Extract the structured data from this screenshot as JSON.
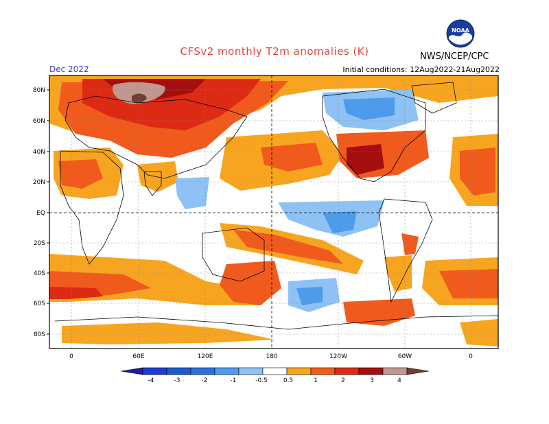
{
  "header": {
    "title": "CFSv2 monthly T2m anomalies (K)",
    "valid_month": "Dec 2022",
    "initial_conditions": "Initial conditions: 12Aug2022-21Aug2022",
    "agency": "NWS/NCEP/CPC",
    "logo_text": "NOAA"
  },
  "map": {
    "lat_labels": [
      "80N",
      "60N",
      "40N",
      "20N",
      "EQ",
      "20S",
      "40S",
      "60S",
      "80S"
    ],
    "lon_labels": [
      "0",
      "60E",
      "120E",
      "180",
      "120W",
      "60W",
      "0"
    ],
    "colors": {
      "ocean_bg": "#ffffff",
      "coast": "#000000",
      "grid": "#888888"
    }
  },
  "legend": {
    "labels": [
      "-4",
      "-3",
      "-2",
      "-1",
      "-0.5",
      "0.5",
      "1",
      "2",
      "3",
      "4"
    ],
    "colors": [
      "#1e1ea0",
      "#1e3cd2",
      "#2e6fe0",
      "#4e9aeb",
      "#8ec2f4",
      "#ffffff",
      "#f7a520",
      "#f05a1c",
      "#dc2a14",
      "#a40e0e",
      "#c09890",
      "#6e4030"
    ]
  }
}
